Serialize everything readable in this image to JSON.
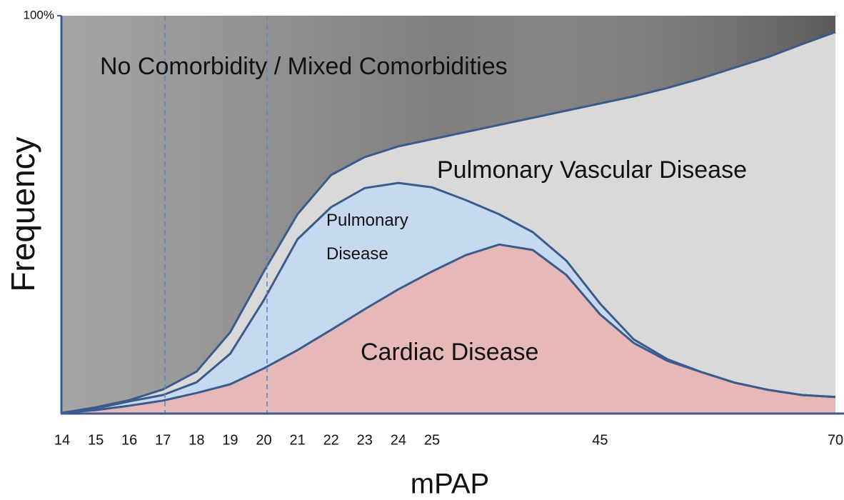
{
  "chart_data": {
    "type": "stacked_area",
    "xlabel": "mPAP",
    "ylabel": "Frequency",
    "categories": [
      "14",
      "15",
      "16",
      "17",
      "18",
      "19",
      "20",
      "21",
      "22",
      "23",
      "24",
      "25",
      null,
      null,
      null,
      null,
      "45",
      null,
      null,
      null,
      null,
      null,
      null,
      "70"
    ],
    "ylim": [
      0,
      100
    ],
    "yticks": [
      {
        "value": 100,
        "label": "100%"
      }
    ],
    "line_color": "#3b5b8c",
    "series": [
      {
        "name": "Cardiac Disease",
        "color": "#e6b9b8",
        "values": [
          0,
          0.7,
          1.8,
          3.1,
          5.0,
          7.2,
          11.2,
          15.8,
          20.9,
          26.1,
          31.1,
          35.6,
          39.7,
          42.4,
          41.0,
          34.7,
          24.8,
          17.6,
          13.1,
          10.3,
          7.6,
          5.8,
          4.5,
          4.0
        ]
      },
      {
        "name": "Pulmonary Disease",
        "color": "#c6d9f0",
        "values": [
          0,
          0.4,
          1.1,
          1.4,
          2.7,
          7.7,
          17.2,
          27.9,
          30.9,
          30.5,
          26.8,
          21.2,
          13.9,
          7.6,
          4.5,
          3.6,
          2.7,
          0.9,
          0.4,
          0,
          0,
          0,
          0,
          0
        ]
      },
      {
        "name": "Pulmonary Vascular Disease",
        "color": "#d9d9d9",
        "values": [
          0,
          0.3,
          0.3,
          1.4,
          2.7,
          5.4,
          7.2,
          6.3,
          8.1,
          7.8,
          9.2,
          12.1,
          17.1,
          22.5,
          28.8,
          37.8,
          50.4,
          61.2,
          68.3,
          73.9,
          79.3,
          83.8,
          88.3,
          91.9
        ]
      },
      {
        "name": "No Comorbidity / Mixed Comorbidities",
        "color": "#7f7f7f",
        "values": [
          100,
          98.6,
          96.8,
          94.1,
          89.6,
          79.7,
          64.4,
          50.0,
          40.1,
          35.6,
          32.9,
          31.1,
          29.3,
          27.5,
          25.7,
          23.9,
          22.1,
          20.3,
          18.2,
          15.8,
          13.1,
          10.4,
          7.2,
          4.1
        ]
      }
    ]
  }
}
